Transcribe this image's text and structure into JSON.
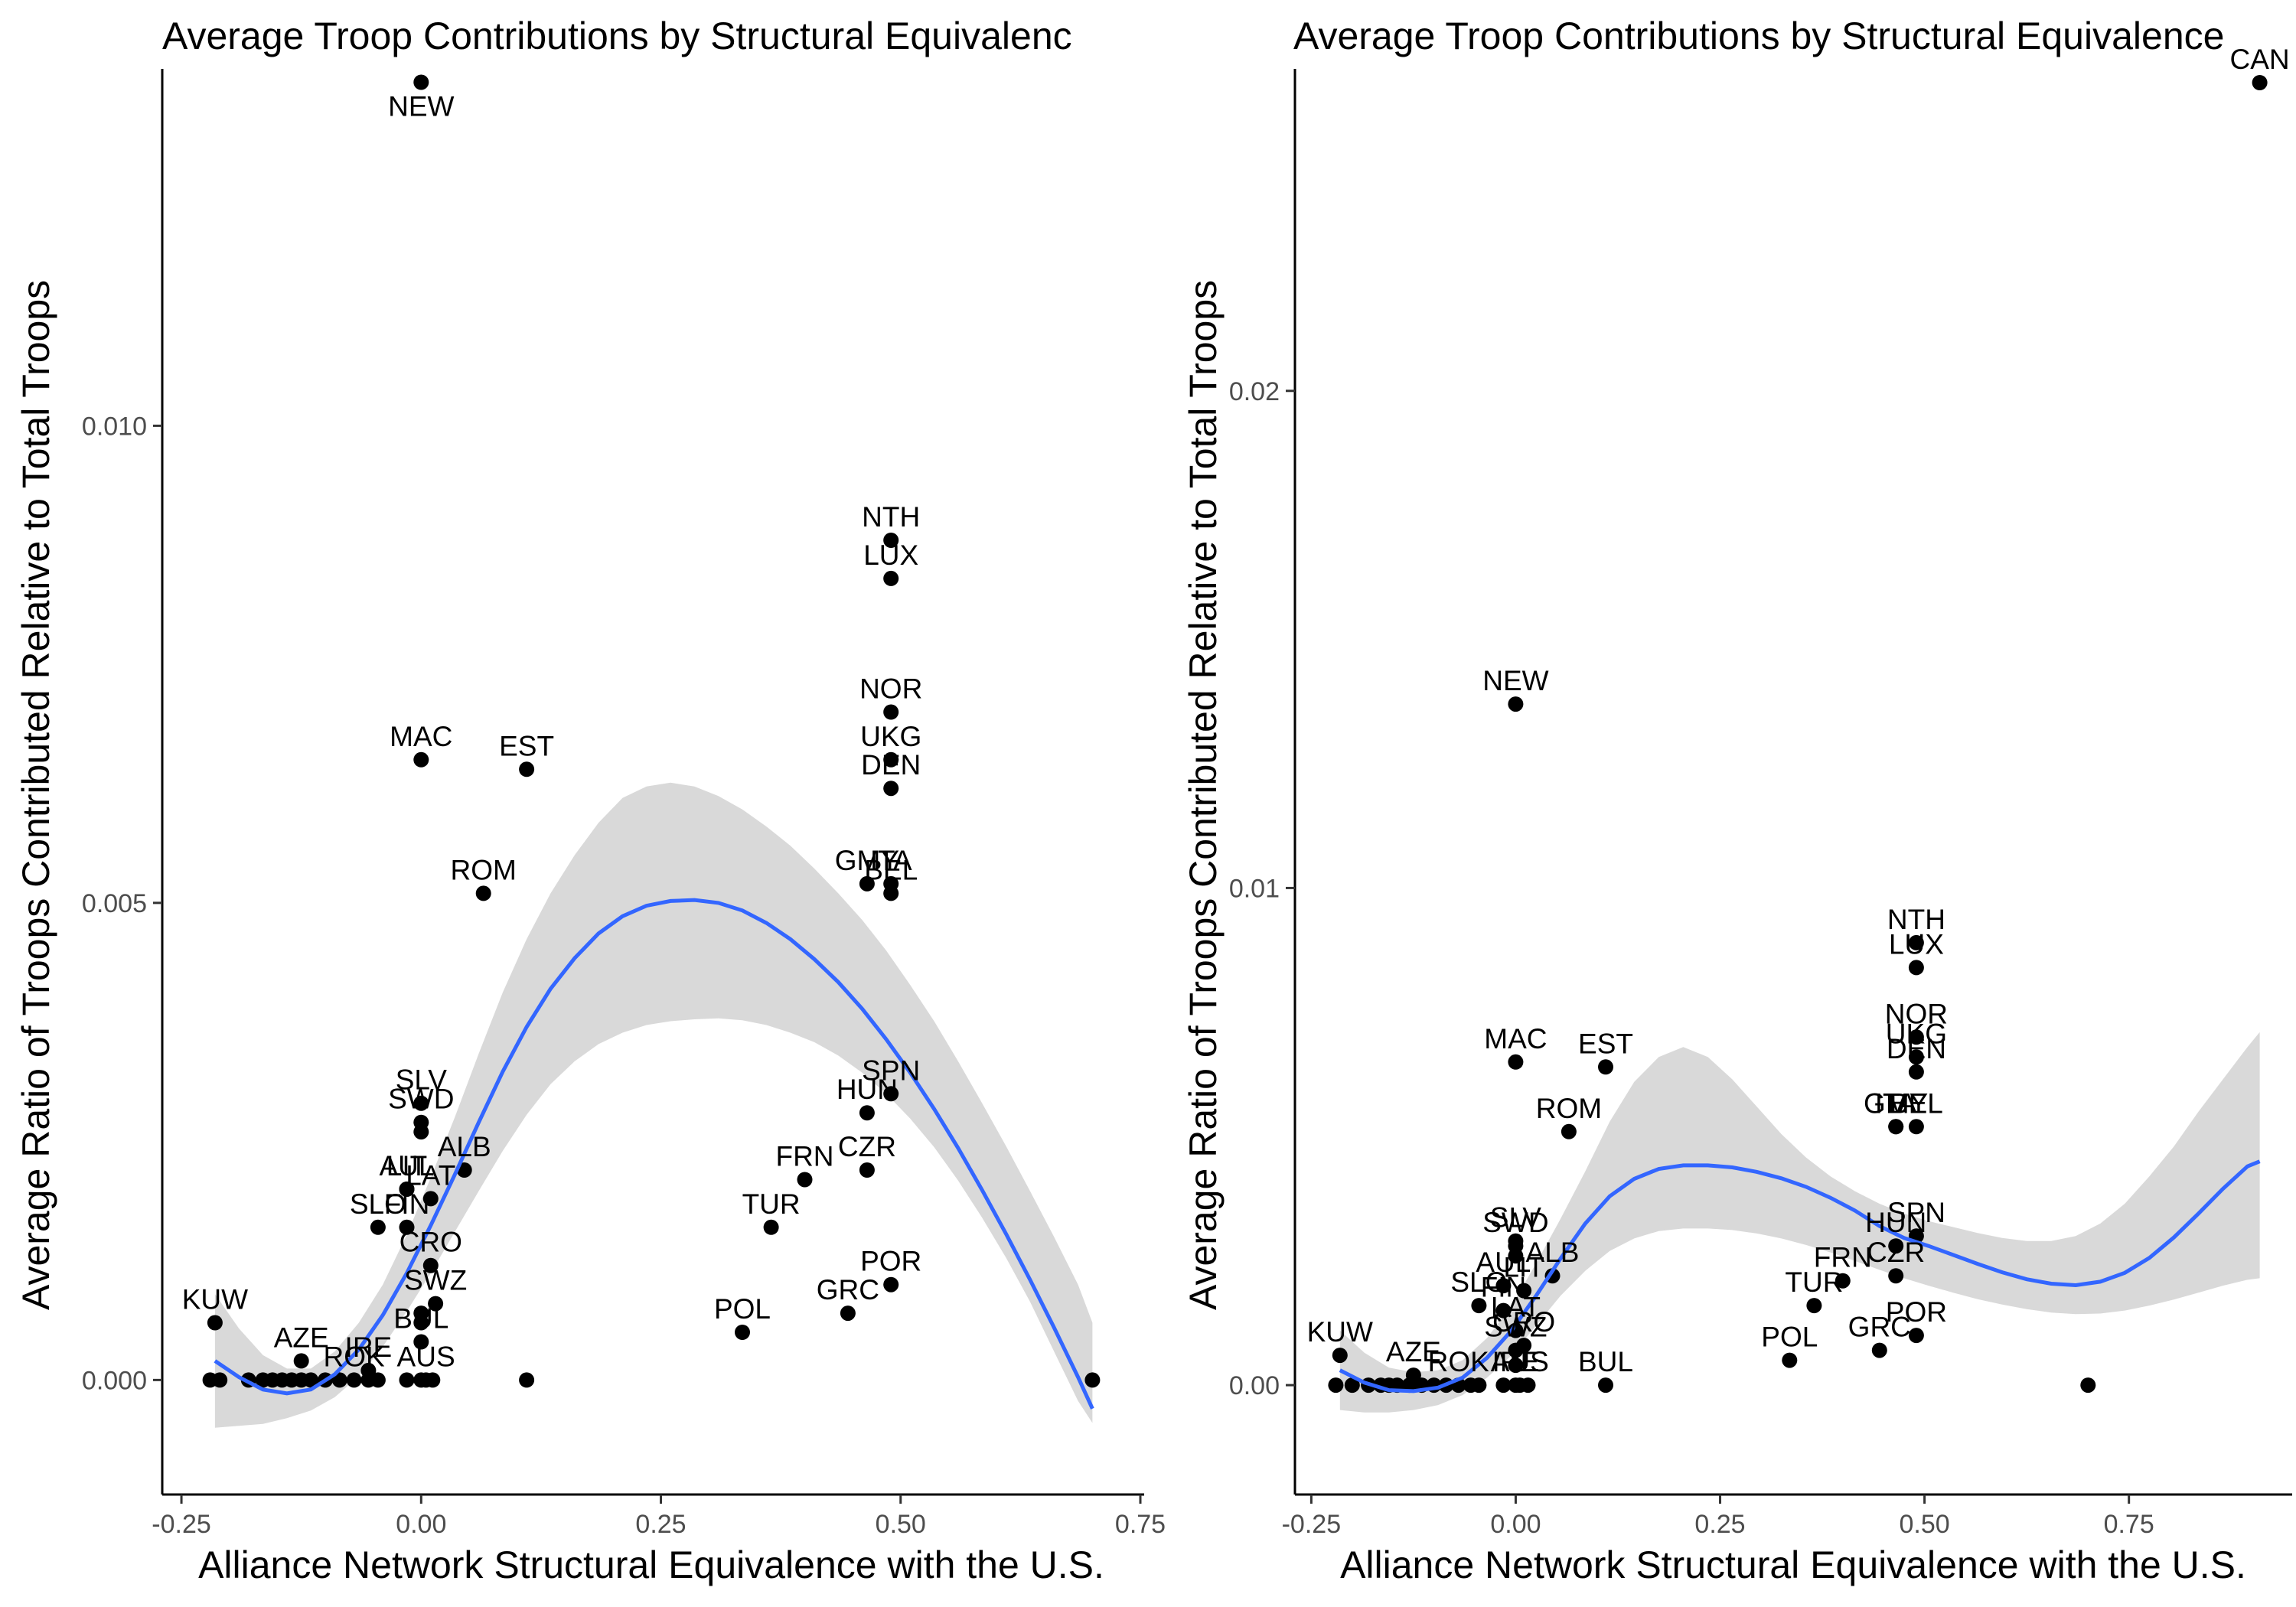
{
  "chart_data": [
    {
      "type": "scatter",
      "title": "Average Troop Contributions by Structural Equivalenc",
      "xlabel": "Alliance Network Structural Equivalence with the U.S.",
      "ylabel": "Average Ratio of Troops Contributed Relative to Total Troops",
      "xlim": [
        -0.27,
        0.75
      ],
      "ylim": [
        -0.0012,
        0.0137
      ],
      "x_ticks": [
        -0.25,
        0.0,
        0.25,
        0.5,
        0.75
      ],
      "x_tick_labels": [
        "-0.25",
        "0.00",
        "0.25",
        "0.50",
        "0.75"
      ],
      "y_ticks": [
        0.0,
        0.005,
        0.01
      ],
      "y_tick_labels": [
        "0.000",
        "0.005",
        "0.010"
      ],
      "grid": false,
      "legend": "none",
      "point_color": "#000000",
      "smooth_color": "#3366FF",
      "band_color": "#D9D9D9",
      "points": [
        {
          "label": "NEW",
          "x": 0.0,
          "y": 0.0136
        },
        {
          "label": "NTH",
          "x": 0.49,
          "y": 0.0088
        },
        {
          "label": "LUX",
          "x": 0.49,
          "y": 0.0084
        },
        {
          "label": "NOR",
          "x": 0.49,
          "y": 0.007
        },
        {
          "label": "UKG",
          "x": 0.49,
          "y": 0.0065
        },
        {
          "label": "DEN",
          "x": 0.49,
          "y": 0.0062
        },
        {
          "label": "MAC",
          "x": 0.0,
          "y": 0.0065
        },
        {
          "label": "EST",
          "x": 0.11,
          "y": 0.0064
        },
        {
          "label": "GMY",
          "x": 0.465,
          "y": 0.0052
        },
        {
          "label": "ITA",
          "x": 0.49,
          "y": 0.0052
        },
        {
          "label": "BEL",
          "x": 0.49,
          "y": 0.0051
        },
        {
          "label": "ROM",
          "x": 0.065,
          "y": 0.0051
        },
        {
          "label": "SLV",
          "x": 0.0,
          "y": 0.0029
        },
        {
          "label": "SWD",
          "x": 0.0,
          "y": 0.0027
        },
        {
          "label": "",
          "x": 0.0,
          "y": 0.0026
        },
        {
          "label": "SPN",
          "x": 0.49,
          "y": 0.003
        },
        {
          "label": "HUN",
          "x": 0.465,
          "y": 0.0028
        },
        {
          "label": "ALB",
          "x": 0.045,
          "y": 0.0022
        },
        {
          "label": "AUL",
          "x": -0.015,
          "y": 0.002
        },
        {
          "label": "LIT",
          "x": -0.015,
          "y": 0.002
        },
        {
          "label": "LAT",
          "x": 0.01,
          "y": 0.0019
        },
        {
          "label": "FRN",
          "x": 0.4,
          "y": 0.0021
        },
        {
          "label": "CZR",
          "x": 0.465,
          "y": 0.0022
        },
        {
          "label": "SLO",
          "x": -0.045,
          "y": 0.0016
        },
        {
          "label": "FIN",
          "x": -0.015,
          "y": 0.0016
        },
        {
          "label": "TUR",
          "x": 0.365,
          "y": 0.0016
        },
        {
          "label": "CRO",
          "x": 0.01,
          "y": 0.0012
        },
        {
          "label": "POR",
          "x": 0.49,
          "y": 0.001
        },
        {
          "label": "SWZ",
          "x": 0.015,
          "y": 0.0008
        },
        {
          "label": "",
          "x": 0.0,
          "y": 0.0007
        },
        {
          "label": "",
          "x": 0.0,
          "y": 0.0006
        },
        {
          "label": "GRC",
          "x": 0.445,
          "y": 0.0007
        },
        {
          "label": "POL",
          "x": 0.335,
          "y": 0.0005
        },
        {
          "label": "BUL",
          "x": 0.0,
          "y": 0.0004
        },
        {
          "label": "KUW",
          "x": -0.215,
          "y": 0.0006
        },
        {
          "label": "AZE",
          "x": -0.125,
          "y": 0.0002
        },
        {
          "label": "IRE",
          "x": -0.055,
          "y": 0.0001
        },
        {
          "label": "ROK",
          "x": -0.07,
          "y": 0.0
        },
        {
          "label": "AUS",
          "x": 0.005,
          "y": 0.0
        },
        {
          "label": "",
          "x": -0.22,
          "y": 0.0
        },
        {
          "label": "",
          "x": -0.21,
          "y": 0.0
        },
        {
          "label": "",
          "x": -0.18,
          "y": 0.0
        },
        {
          "label": "",
          "x": -0.165,
          "y": 0.0
        },
        {
          "label": "",
          "x": -0.155,
          "y": 0.0
        },
        {
          "label": "",
          "x": -0.145,
          "y": 0.0
        },
        {
          "label": "",
          "x": -0.135,
          "y": 0.0
        },
        {
          "label": "",
          "x": -0.125,
          "y": 0.0
        },
        {
          "label": "",
          "x": -0.115,
          "y": 0.0
        },
        {
          "label": "",
          "x": -0.1,
          "y": 0.0
        },
        {
          "label": "",
          "x": -0.085,
          "y": 0.0
        },
        {
          "label": "",
          "x": -0.055,
          "y": 0.0
        },
        {
          "label": "",
          "x": -0.045,
          "y": 0.0
        },
        {
          "label": "",
          "x": -0.015,
          "y": 0.0
        },
        {
          "label": "",
          "x": 0.0,
          "y": 0.0
        },
        {
          "label": "",
          "x": 0.012,
          "y": 0.0
        },
        {
          "label": "",
          "x": 0.11,
          "y": 0.0
        },
        {
          "label": "",
          "x": 0.7,
          "y": 0.0
        }
      ],
      "smooth": {
        "x": [
          -0.215,
          -0.19,
          -0.165,
          -0.14,
          -0.115,
          -0.09,
          -0.065,
          -0.04,
          -0.015,
          0.01,
          0.035,
          0.06,
          0.085,
          0.11,
          0.135,
          0.16,
          0.185,
          0.21,
          0.235,
          0.26,
          0.285,
          0.31,
          0.335,
          0.36,
          0.385,
          0.41,
          0.435,
          0.46,
          0.485,
          0.51,
          0.535,
          0.56,
          0.585,
          0.61,
          0.635,
          0.66,
          0.685,
          0.7
        ],
        "y": [
          0.0002,
          3e-05,
          -0.0001,
          -0.00014,
          -0.0001,
          6e-05,
          0.00032,
          0.00068,
          0.00112,
          0.00162,
          0.00215,
          0.0027,
          0.00323,
          0.0037,
          0.0041,
          0.00442,
          0.00468,
          0.00486,
          0.00497,
          0.00502,
          0.00503,
          0.005,
          0.00492,
          0.00479,
          0.00462,
          0.00441,
          0.00417,
          0.00389,
          0.00357,
          0.00322,
          0.00284,
          0.00243,
          0.00199,
          0.00153,
          0.00105,
          0.00055,
          3e-05,
          -0.0003
        ],
        "lower": [
          -0.0005,
          -0.00048,
          -0.00046,
          -0.0004,
          -0.00032,
          -0.00018,
          4e-05,
          0.00035,
          0.00072,
          0.00112,
          0.00155,
          0.00198,
          0.0024,
          0.00278,
          0.0031,
          0.00334,
          0.00352,
          0.00364,
          0.00372,
          0.00376,
          0.00378,
          0.00379,
          0.00377,
          0.00372,
          0.00364,
          0.00354,
          0.0034,
          0.00322,
          0.003,
          0.00274,
          0.00244,
          0.00209,
          0.0017,
          0.00128,
          0.00082,
          0.0003,
          -0.00022,
          -0.00045
        ],
        "upper": [
          0.0009,
          0.00054,
          0.00026,
          0.00012,
          0.00012,
          0.0003,
          0.0006,
          0.001,
          0.00152,
          0.00212,
          0.00275,
          0.00342,
          0.00406,
          0.00462,
          0.0051,
          0.0055,
          0.00584,
          0.0061,
          0.00622,
          0.00626,
          0.00622,
          0.00612,
          0.00598,
          0.0058,
          0.0056,
          0.00536,
          0.0051,
          0.00482,
          0.0045,
          0.00414,
          0.00376,
          0.00334,
          0.0029,
          0.00245,
          0.00198,
          0.0015,
          0.001,
          0.0006
        ]
      }
    },
    {
      "type": "scatter",
      "title": "Average Troop Contributions by Structural Equivalence",
      "xlabel": "Alliance Network Structural Equivalence with the U.S.",
      "ylabel": "Average Ratio of Troops Contributed Relative to Total Troops",
      "xlim": [
        -0.27,
        0.945
      ],
      "ylim": [
        -0.0022,
        0.0264
      ],
      "x_ticks": [
        -0.25,
        0.0,
        0.25,
        0.5,
        0.75
      ],
      "x_tick_labels": [
        "-0.25",
        "0.00",
        "0.25",
        "0.50",
        "0.75"
      ],
      "y_ticks": [
        0.0,
        0.01,
        0.02
      ],
      "y_tick_labels": [
        "0.00",
        "0.01",
        "0.02"
      ],
      "grid": false,
      "legend": "none",
      "point_color": "#000000",
      "smooth_color": "#3366FF",
      "band_color": "#D9D9D9",
      "points": [
        {
          "label": "CAN",
          "x": 0.91,
          "y": 0.0262
        },
        {
          "label": "NEW",
          "x": 0.0,
          "y": 0.0137
        },
        {
          "label": "NTH",
          "x": 0.49,
          "y": 0.0089
        },
        {
          "label": "LUX",
          "x": 0.49,
          "y": 0.0084
        },
        {
          "label": "NOR",
          "x": 0.49,
          "y": 0.007
        },
        {
          "label": "UKG",
          "x": 0.49,
          "y": 0.0066
        },
        {
          "label": "DEN",
          "x": 0.49,
          "y": 0.0063
        },
        {
          "label": "MAC",
          "x": 0.0,
          "y": 0.0065
        },
        {
          "label": "EST",
          "x": 0.11,
          "y": 0.0064
        },
        {
          "label": "GMY",
          "x": 0.465,
          "y": 0.0052
        },
        {
          "label": "ITA",
          "x": 0.465,
          "y": 0.0052
        },
        {
          "label": "BEL",
          "x": 0.49,
          "y": 0.0052
        },
        {
          "label": "ROM",
          "x": 0.065,
          "y": 0.0051
        },
        {
          "label": "SLV",
          "x": 0.0,
          "y": 0.0029
        },
        {
          "label": "SWD",
          "x": 0.0,
          "y": 0.0028
        },
        {
          "label": "",
          "x": 0.0,
          "y": 0.0026
        },
        {
          "label": "SPN",
          "x": 0.49,
          "y": 0.003
        },
        {
          "label": "HUN",
          "x": 0.465,
          "y": 0.0028
        },
        {
          "label": "ALB",
          "x": 0.045,
          "y": 0.0022
        },
        {
          "label": "AUL",
          "x": -0.015,
          "y": 0.002
        },
        {
          "label": "LIT",
          "x": 0.01,
          "y": 0.0019
        },
        {
          "label": "FRN",
          "x": 0.4,
          "y": 0.0021
        },
        {
          "label": "CZR",
          "x": 0.465,
          "y": 0.0022
        },
        {
          "label": "SLO",
          "x": -0.045,
          "y": 0.0016
        },
        {
          "label": "FIN",
          "x": -0.015,
          "y": 0.0015
        },
        {
          "label": "TUR",
          "x": 0.365,
          "y": 0.0016
        },
        {
          "label": "LAT",
          "x": 0.0,
          "y": 0.0011
        },
        {
          "label": "POR",
          "x": 0.49,
          "y": 0.001
        },
        {
          "label": "CRO",
          "x": 0.01,
          "y": 0.0008
        },
        {
          "label": "SWZ",
          "x": 0.0,
          "y": 0.0007
        },
        {
          "label": "",
          "x": 0.0,
          "y": 0.0004
        },
        {
          "label": "GRC",
          "x": 0.445,
          "y": 0.0007
        },
        {
          "label": "POL",
          "x": 0.335,
          "y": 0.0005
        },
        {
          "label": "KUW",
          "x": -0.215,
          "y": 0.0006
        },
        {
          "label": "AZE",
          "x": -0.125,
          "y": 0.0002
        },
        {
          "label": "IRE",
          "x": 0.0,
          "y": 0.0
        },
        {
          "label": "ROK",
          "x": -0.07,
          "y": 0.0
        },
        {
          "label": "BUL",
          "x": 0.11,
          "y": 0.0
        },
        {
          "label": "AUS",
          "x": 0.005,
          "y": 0.0
        },
        {
          "label": "",
          "x": -0.22,
          "y": 0.0
        },
        {
          "label": "",
          "x": -0.2,
          "y": 0.0
        },
        {
          "label": "",
          "x": -0.18,
          "y": 0.0
        },
        {
          "label": "",
          "x": -0.165,
          "y": 0.0
        },
        {
          "label": "",
          "x": -0.155,
          "y": 0.0
        },
        {
          "label": "",
          "x": -0.145,
          "y": 0.0
        },
        {
          "label": "",
          "x": -0.13,
          "y": 0.0
        },
        {
          "label": "",
          "x": -0.115,
          "y": 0.0
        },
        {
          "label": "",
          "x": -0.1,
          "y": 0.0
        },
        {
          "label": "",
          "x": -0.085,
          "y": 0.0
        },
        {
          "label": "",
          "x": -0.055,
          "y": 0.0
        },
        {
          "label": "",
          "x": -0.045,
          "y": 0.0
        },
        {
          "label": "",
          "x": -0.015,
          "y": 0.0
        },
        {
          "label": "",
          "x": 0.015,
          "y": 0.0
        },
        {
          "label": "",
          "x": 0.7,
          "y": 0.0
        }
      ],
      "smooth": {
        "x": [
          -0.215,
          -0.185,
          -0.155,
          -0.125,
          -0.095,
          -0.065,
          -0.035,
          -0.005,
          0.025,
          0.055,
          0.085,
          0.115,
          0.145,
          0.175,
          0.205,
          0.235,
          0.265,
          0.295,
          0.325,
          0.355,
          0.385,
          0.415,
          0.445,
          0.475,
          0.505,
          0.535,
          0.565,
          0.595,
          0.625,
          0.655,
          0.685,
          0.715,
          0.745,
          0.775,
          0.805,
          0.835,
          0.865,
          0.895,
          0.91
        ],
        "y": [
          0.0003,
          5e-05,
          -0.0001,
          -0.00012,
          -5e-05,
          0.00015,
          0.00055,
          0.0011,
          0.0018,
          0.00255,
          0.00325,
          0.0038,
          0.00415,
          0.00435,
          0.00442,
          0.00442,
          0.00438,
          0.00429,
          0.00416,
          0.00399,
          0.00377,
          0.00351,
          0.0032,
          0.00296,
          0.0028,
          0.00262,
          0.00244,
          0.00227,
          0.00213,
          0.00204,
          0.00201,
          0.00208,
          0.00226,
          0.00256,
          0.00297,
          0.00345,
          0.00395,
          0.0044,
          0.0045
        ],
        "lower": [
          -0.0005,
          -0.00055,
          -0.00055,
          -0.0005,
          -0.0004,
          -0.0002,
          0.00015,
          0.0006,
          0.0012,
          0.0018,
          0.0023,
          0.0027,
          0.00295,
          0.0031,
          0.00315,
          0.00315,
          0.00312,
          0.00305,
          0.00295,
          0.00282,
          0.00267,
          0.0025,
          0.00232,
          0.00215,
          0.002,
          0.00186,
          0.00173,
          0.00162,
          0.00153,
          0.00146,
          0.00143,
          0.00144,
          0.0015,
          0.0016,
          0.00172,
          0.00186,
          0.002,
          0.00212,
          0.00215
        ],
        "upper": [
          0.0011,
          0.00065,
          0.00035,
          0.00026,
          0.0003,
          0.0005,
          0.00095,
          0.0016,
          0.00245,
          0.00335,
          0.0043,
          0.0053,
          0.0061,
          0.0066,
          0.0068,
          0.0066,
          0.00615,
          0.0056,
          0.00505,
          0.00458,
          0.0042,
          0.0039,
          0.00365,
          0.00345,
          0.0033,
          0.00318,
          0.00306,
          0.00296,
          0.0029,
          0.0029,
          0.003,
          0.00325,
          0.00365,
          0.0042,
          0.0048,
          0.0055,
          0.00615,
          0.0068,
          0.0071
        ]
      }
    }
  ]
}
